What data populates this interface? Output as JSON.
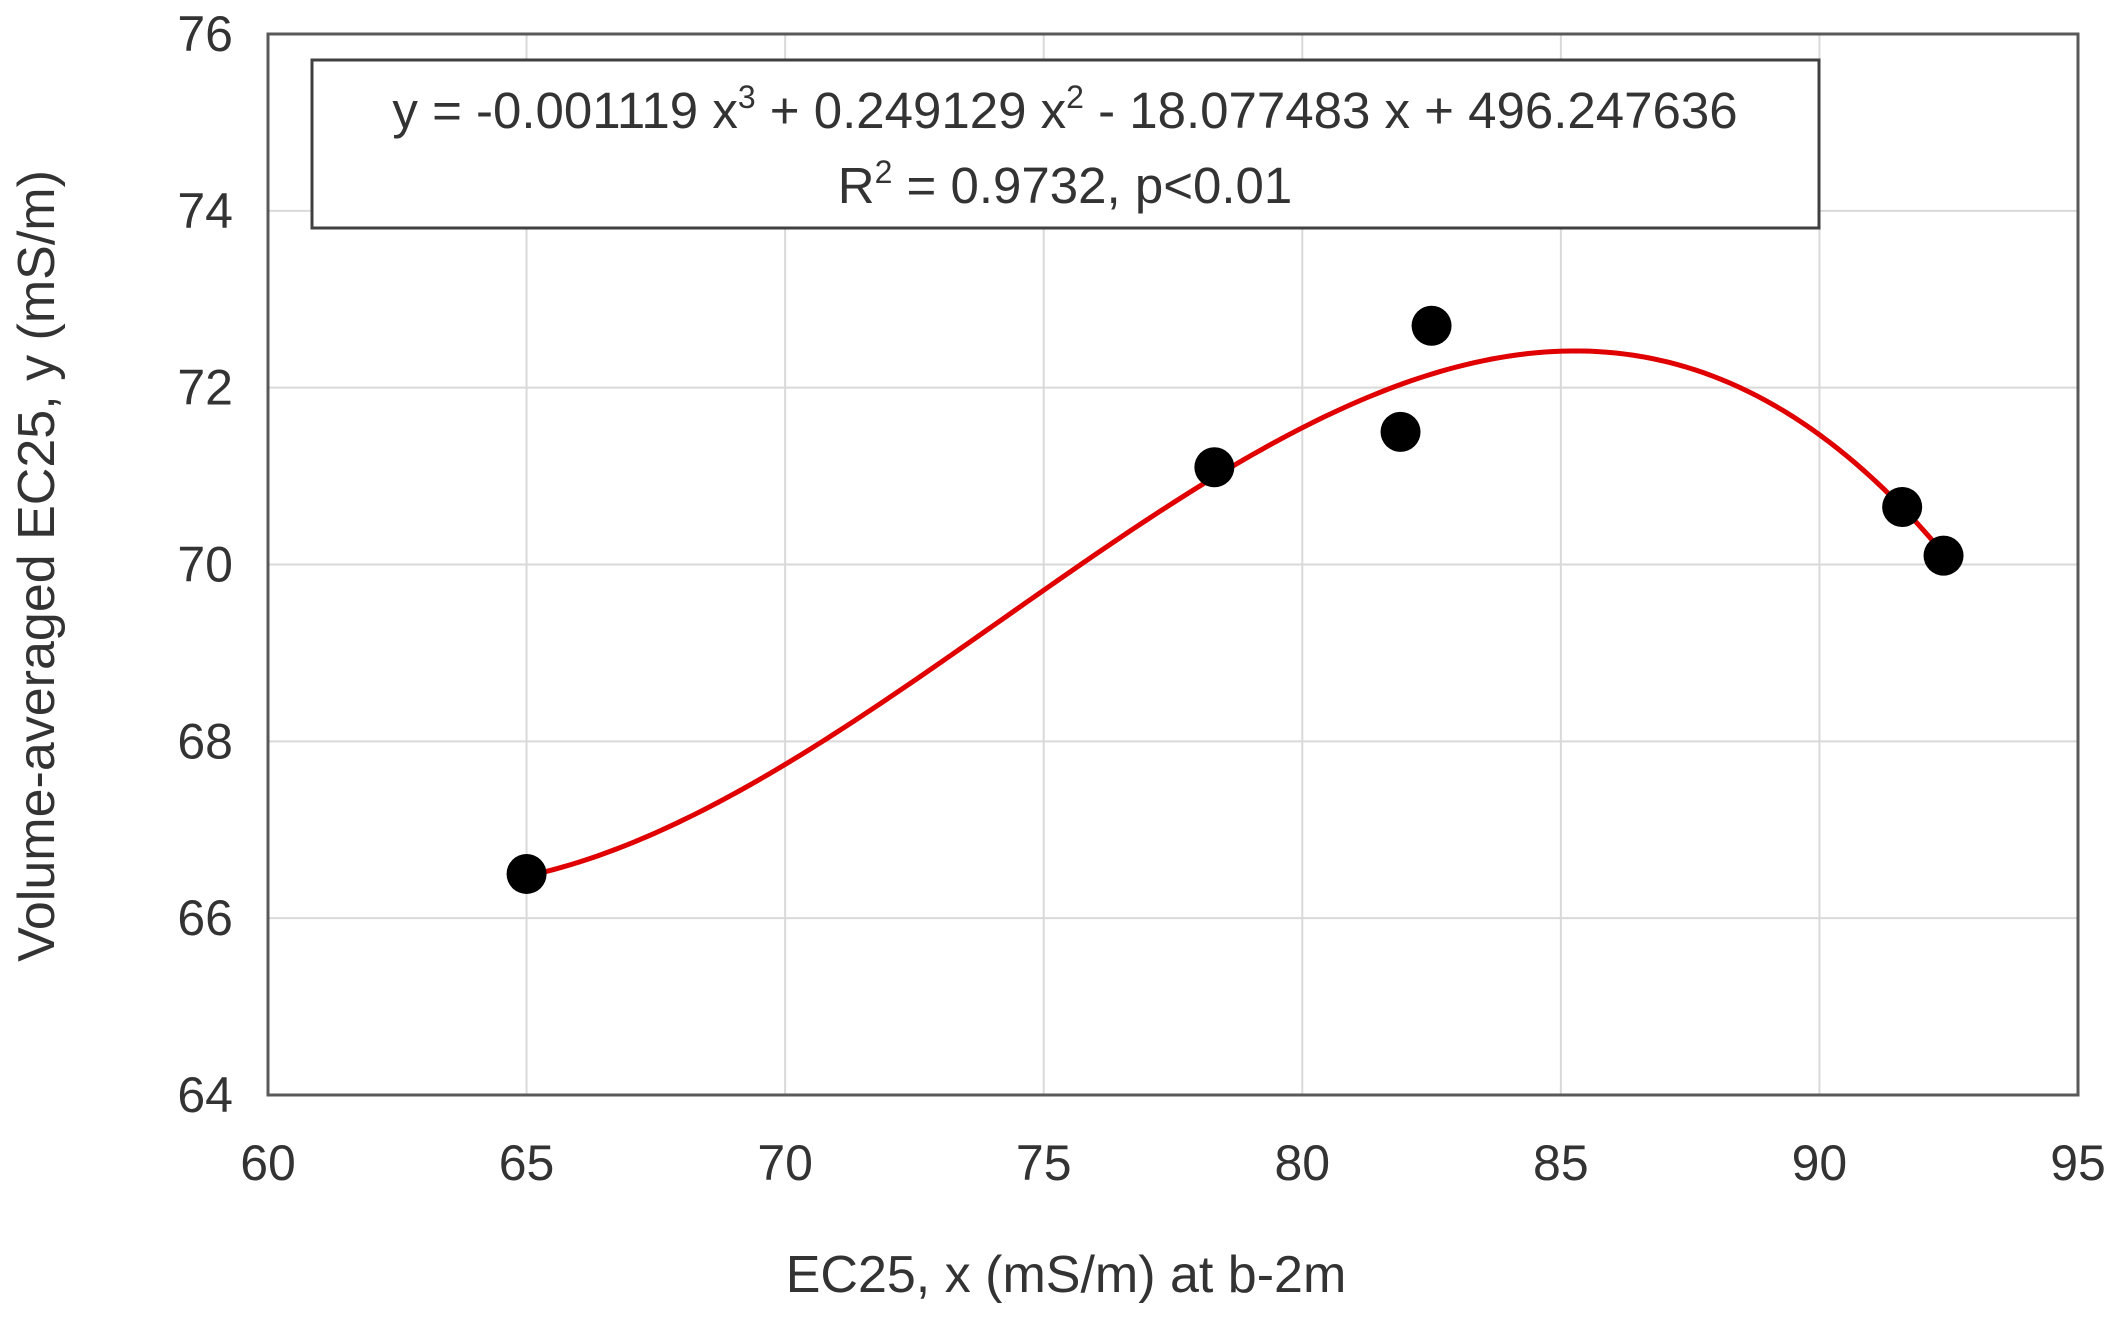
{
  "chart_data": {
    "type": "scatter",
    "title": "",
    "xlabel": "EC25, x (mS/m) at b-2m",
    "ylabel": "Volume-averaged EC25, y (mS/m)",
    "xlim": [
      60,
      95
    ],
    "ylim": [
      64,
      76
    ],
    "x_ticks": [
      60,
      65,
      70,
      75,
      80,
      85,
      90,
      95
    ],
    "y_ticks": [
      64,
      66,
      68,
      70,
      72,
      74,
      76
    ],
    "grid": true,
    "legend": "none",
    "series": [
      {
        "kind": "points",
        "color": "#000000",
        "x": [
          65.0,
          78.3,
          81.9,
          82.5,
          91.6,
          92.4
        ],
        "y": [
          66.5,
          71.1,
          71.5,
          72.7,
          70.65,
          70.1
        ]
      }
    ],
    "fit": {
      "kind": "polynomial",
      "degree": 3,
      "color": "#e00000",
      "coefficients": [
        -0.001119,
        0.249129,
        -18.077483,
        496.247636
      ],
      "x_range": [
        65.0,
        92.4
      ]
    },
    "annotation": {
      "equation_prefix": "y = -0.001119 x",
      "equation_mid1": " + 0.249129 x",
      "equation_suffix": " - 18.077483 x + 496.247636",
      "sup3": "3",
      "sup2": "2",
      "r2_prefix": "R",
      "r2_sup": "2",
      "r2_suffix": " = 0.9732, p<0.01"
    }
  }
}
